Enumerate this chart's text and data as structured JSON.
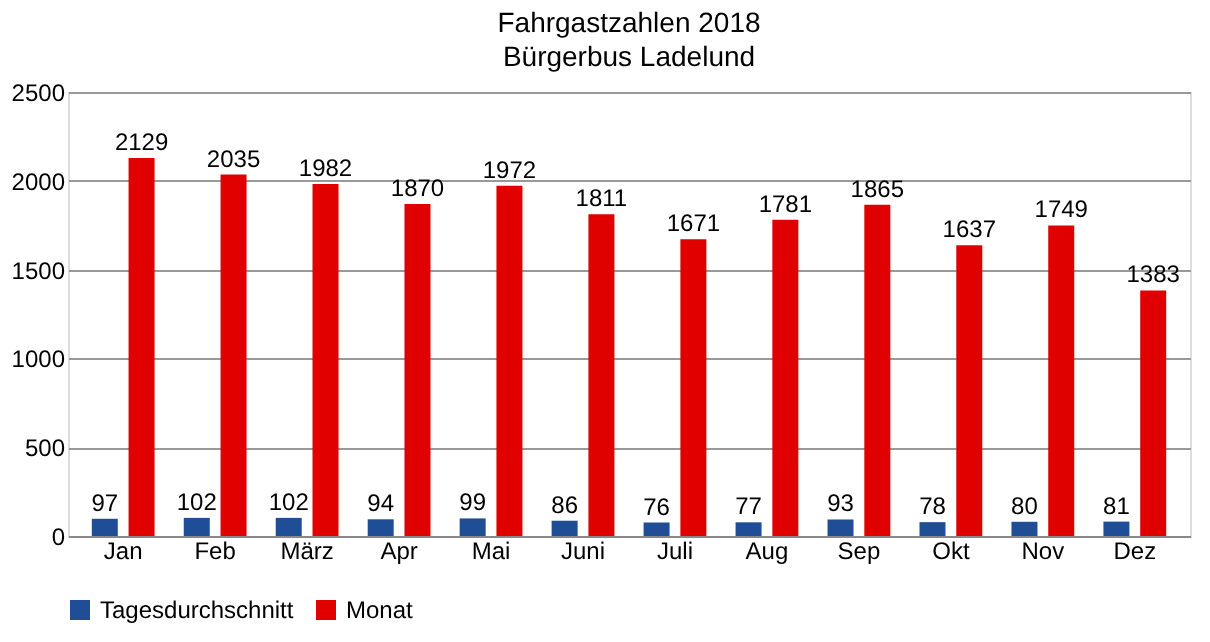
{
  "chart_data": {
    "type": "bar",
    "title": "Fahrgastzahlen 2018",
    "subtitle": "Bürgerbus Ladelund",
    "categories": [
      "Jan",
      "Feb",
      "März",
      "Apr",
      "Mai",
      "Juni",
      "Juli",
      "Aug",
      "Sep",
      "Okt",
      "Nov",
      "Dez"
    ],
    "series": [
      {
        "name": "Tagesdurchschnitt",
        "color": "#1f4e96",
        "values": [
          97,
          102,
          102,
          94,
          99,
          86,
          76,
          77,
          93,
          78,
          80,
          81
        ]
      },
      {
        "name": "Monat",
        "color": "#e00000",
        "values": [
          2129,
          2035,
          1982,
          1870,
          1972,
          1811,
          1671,
          1781,
          1865,
          1637,
          1749,
          1383
        ]
      }
    ],
    "ylim": [
      0,
      2500
    ],
    "yticks": [
      0,
      500,
      1000,
      1500,
      2000,
      2500
    ],
    "grid": "y",
    "legend": "bottom",
    "data_labels": true
  }
}
